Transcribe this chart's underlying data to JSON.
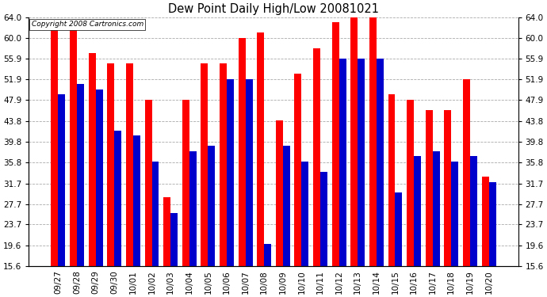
{
  "title": "Dew Point Daily High/Low 20081021",
  "copyright": "Copyright 2008 Cartronics.com",
  "dates": [
    "09/27",
    "09/28",
    "09/29",
    "09/30",
    "10/01",
    "10/02",
    "10/03",
    "10/04",
    "10/05",
    "10/06",
    "10/07",
    "10/08",
    "10/09",
    "10/10",
    "10/11",
    "10/12",
    "10/13",
    "10/14",
    "10/15",
    "10/16",
    "10/17",
    "10/18",
    "10/19",
    "10/20"
  ],
  "highs": [
    63,
    63,
    57,
    55,
    55,
    48,
    29,
    48,
    55,
    55,
    60,
    61,
    44,
    53,
    58,
    63,
    64,
    65,
    49,
    48,
    46,
    46,
    52,
    33
  ],
  "lows": [
    49,
    51,
    50,
    42,
    41,
    36,
    26,
    38,
    39,
    52,
    52,
    20,
    39,
    36,
    34,
    56,
    56,
    56,
    30,
    37,
    38,
    36,
    37,
    32
  ],
  "high_color": "#ff0000",
  "low_color": "#0000cc",
  "bg_color": "#ffffff",
  "grid_color": "#aaaaaa",
  "ytick_values": [
    15.6,
    19.6,
    23.7,
    27.7,
    31.7,
    35.8,
    39.8,
    43.8,
    47.9,
    51.9,
    55.9,
    60.0,
    64.0
  ],
  "ytick_labels": [
    "15.6",
    "19.6",
    "23.7",
    "27.7",
    "31.7",
    "35.8",
    "39.8",
    "43.8",
    "47.9",
    "51.9",
    "55.9",
    "60.0",
    "64.0"
  ],
  "ymin": 15.6,
  "ymax": 64.0,
  "ybase": 15.6,
  "bar_width": 0.38,
  "figwidth": 6.9,
  "figheight": 3.75,
  "dpi": 100
}
